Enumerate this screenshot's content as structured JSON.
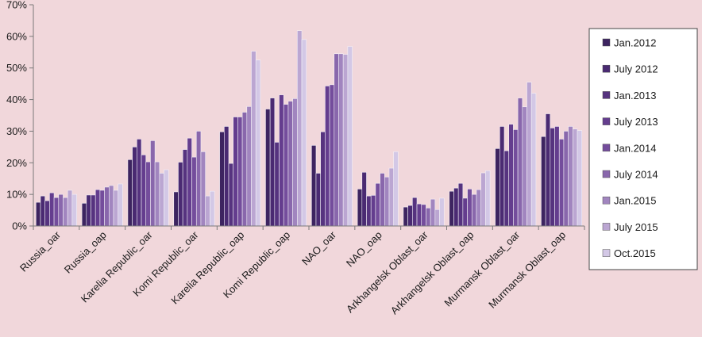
{
  "chart_data": {
    "type": "bar",
    "title": "",
    "xlabel": "",
    "ylabel": "",
    "ylim": [
      0,
      70
    ],
    "y_ticks": [
      "0%",
      "10%",
      "20%",
      "30%",
      "40%",
      "50%",
      "60%",
      "70%"
    ],
    "grid": false,
    "legend_position": "right",
    "categories": [
      "Russia_oar",
      "Russia_oap",
      "Karelia Republic_oar",
      "Komi Republic_oar",
      "Karelia Republic_oap",
      "Komi Republic_oap",
      "NAO_oar",
      "NAO_oap",
      "Arkhangelsk Oblast_oar",
      "Arkhangelsk Oblast_oap",
      "Murmansk Oblast_oar",
      "Murmansk Oblast_oap"
    ],
    "series": [
      {
        "name": "Jan.2012",
        "color": "#3d2460",
        "values": [
          7.5,
          7.2,
          21,
          10.8,
          29.8,
          37,
          25.5,
          11.7,
          6,
          11,
          24.5,
          28.3
        ]
      },
      {
        "name": "July 2012",
        "color": "#4a2a72",
        "values": [
          9.5,
          9.8,
          25,
          20.2,
          31.5,
          40.5,
          16.7,
          17,
          6.5,
          12,
          31.5,
          35.5
        ]
      },
      {
        "name": "Jan.2013",
        "color": "#56337f",
        "values": [
          8,
          9.8,
          27.5,
          24.2,
          19.8,
          26.5,
          29.8,
          9.5,
          9,
          13.5,
          23.8,
          31
        ]
      },
      {
        "name": "July 2013",
        "color": "#643d8e",
        "values": [
          10.5,
          11.5,
          22.5,
          27.8,
          34.5,
          41.5,
          44.3,
          9.7,
          7,
          8.8,
          32.2,
          31.5
        ]
      },
      {
        "name": "Jan.2014",
        "color": "#744d9c",
        "values": [
          9,
          11.3,
          20.3,
          21.8,
          34.5,
          38.5,
          44.7,
          13.5,
          6.8,
          11.7,
          30.5,
          27.5
        ]
      },
      {
        "name": "July 2014",
        "color": "#8967ac",
        "values": [
          10,
          12.3,
          27,
          30,
          36,
          39.5,
          54.5,
          16.7,
          5.7,
          10,
          40.5,
          30
        ]
      },
      {
        "name": "Jan.2015",
        "color": "#a185bf",
        "values": [
          9,
          12.8,
          20.3,
          23.5,
          37.8,
          40.3,
          54.5,
          15.5,
          8.5,
          11.5,
          37.7,
          31.5
        ]
      },
      {
        "name": "July 2015",
        "color": "#bba6d2",
        "values": [
          11.3,
          11.3,
          16.7,
          9.5,
          55.3,
          61.8,
          54.3,
          18.3,
          5.2,
          16.8,
          45.5,
          30.7
        ]
      },
      {
        "name": "Oct.2015",
        "color": "#d3c8e6",
        "values": [
          10,
          13.3,
          17.8,
          11,
          52.5,
          59,
          56.8,
          23.5,
          8.8,
          17.5,
          42,
          30.2
        ]
      }
    ]
  }
}
